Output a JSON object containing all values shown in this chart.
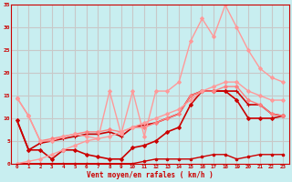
{
  "bg_color": "#c8eef0",
  "grid_color": "#c8c8c8",
  "xlabel": "Vent moyen/en rafales ( km/h )",
  "xlabel_color": "#cc0000",
  "tick_color": "#cc0000",
  "xlim": [
    -0.5,
    23.5
  ],
  "ylim": [
    0,
    35
  ],
  "yticks": [
    0,
    5,
    10,
    15,
    20,
    25,
    30,
    35
  ],
  "xticks": [
    0,
    1,
    2,
    3,
    4,
    5,
    6,
    7,
    8,
    9,
    10,
    11,
    12,
    13,
    14,
    15,
    16,
    17,
    18,
    19,
    20,
    21,
    22,
    23
  ],
  "series": [
    {
      "x": [
        0,
        1,
        2,
        3,
        4,
        5,
        6,
        7,
        8,
        9,
        10,
        11,
        12,
        13,
        14,
        15,
        16,
        17,
        18,
        19,
        20,
        21,
        22,
        23
      ],
      "y": [
        0,
        0,
        0,
        0,
        0,
        0,
        0,
        0,
        0,
        0,
        0,
        0.5,
        1,
        1,
        1,
        1,
        1.5,
        2,
        2,
        1,
        1.5,
        2,
        2,
        2
      ],
      "color": "#cc0000",
      "lw": 1.0,
      "marker": "o",
      "ms": 1.8
    },
    {
      "x": [
        0,
        1,
        2,
        3,
        4,
        5,
        6,
        7,
        8,
        9,
        10,
        11,
        12,
        13,
        14,
        15,
        16,
        17,
        18,
        19,
        20,
        21,
        22,
        23
      ],
      "y": [
        9.5,
        3,
        3,
        1,
        3,
        3,
        2,
        1.5,
        1,
        1,
        3.5,
        4,
        5,
        7,
        8,
        13,
        16,
        16,
        16,
        14,
        10,
        10,
        10,
        10.5
      ],
      "color": "#cc0000",
      "lw": 1.2,
      "marker": "D",
      "ms": 2.0
    },
    {
      "x": [
        0,
        1,
        2,
        3,
        4,
        5,
        6,
        7,
        8,
        9,
        10,
        11,
        12,
        13,
        14,
        15,
        16,
        17,
        18,
        19,
        20,
        21,
        22,
        23
      ],
      "y": [
        9.5,
        3,
        4.5,
        5,
        5.5,
        6,
        6.5,
        6.5,
        7,
        6,
        8,
        8.5,
        9,
        10,
        11,
        15,
        16,
        16,
        16,
        16,
        13,
        13,
        11,
        10.5
      ],
      "color": "#cc0000",
      "lw": 1.2,
      "marker": "+",
      "ms": 3.5
    },
    {
      "x": [
        0,
        1,
        2,
        3,
        4,
        5,
        6,
        7,
        8,
        9,
        10,
        11,
        12,
        13,
        14,
        15,
        16,
        17,
        18,
        19,
        20,
        21,
        22,
        23
      ],
      "y": [
        14.5,
        10.5,
        5,
        5.5,
        6,
        6.5,
        7,
        7,
        7.5,
        7,
        8,
        8,
        9,
        10,
        11,
        15,
        16,
        16,
        17,
        17,
        14,
        13,
        11,
        10.5
      ],
      "color": "#ff8080",
      "lw": 1.0,
      "marker": "D",
      "ms": 2.0
    },
    {
      "x": [
        0,
        1,
        2,
        3,
        4,
        5,
        6,
        7,
        8,
        9,
        10,
        11,
        12,
        13,
        14,
        15,
        16,
        17,
        18,
        19,
        20,
        21,
        22,
        23
      ],
      "y": [
        14.5,
        10.5,
        5,
        5,
        6,
        6.5,
        6,
        5.5,
        16,
        6.5,
        16,
        6,
        16,
        16,
        18,
        27,
        32,
        28,
        35,
        30,
        25,
        21,
        19,
        18
      ],
      "color": "#ff9999",
      "lw": 1.0,
      "marker": "D",
      "ms": 2.0
    },
    {
      "x": [
        0,
        1,
        2,
        3,
        4,
        5,
        6,
        7,
        8,
        9,
        10,
        11,
        12,
        13,
        14,
        15,
        16,
        17,
        18,
        19,
        20,
        21,
        22,
        23
      ],
      "y": [
        0,
        0.5,
        1,
        2,
        3,
        4,
        5,
        5.5,
        6,
        7,
        8,
        9,
        10,
        11,
        12,
        14,
        16,
        17,
        18,
        18,
        16,
        15,
        14,
        14
      ],
      "color": "#ff9999",
      "lw": 1.0,
      "marker": "D",
      "ms": 2.0
    }
  ]
}
